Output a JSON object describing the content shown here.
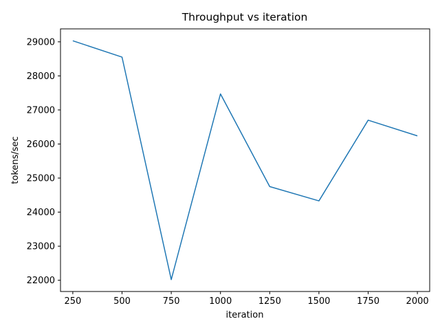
{
  "chart_data": {
    "type": "line",
    "title": "Throughput vs iteration",
    "xlabel": "iteration",
    "ylabel": "tokens/sec",
    "x": [
      250,
      500,
      750,
      1000,
      1250,
      1500,
      1750,
      2000
    ],
    "series": [
      {
        "values": [
          29030,
          28550,
          22020,
          27470,
          24750,
          24330,
          26700,
          26240
        ],
        "color": "#1f77b4"
      }
    ],
    "xlim": [
      187.5,
      2062.5
    ],
    "ylim": [
      21670,
      29380
    ],
    "xticks": [
      250,
      500,
      750,
      1000,
      1250,
      1500,
      1750,
      2000
    ],
    "yticks": [
      22000,
      23000,
      24000,
      25000,
      26000,
      27000,
      28000,
      29000
    ],
    "grid": false,
    "legend": false
  }
}
